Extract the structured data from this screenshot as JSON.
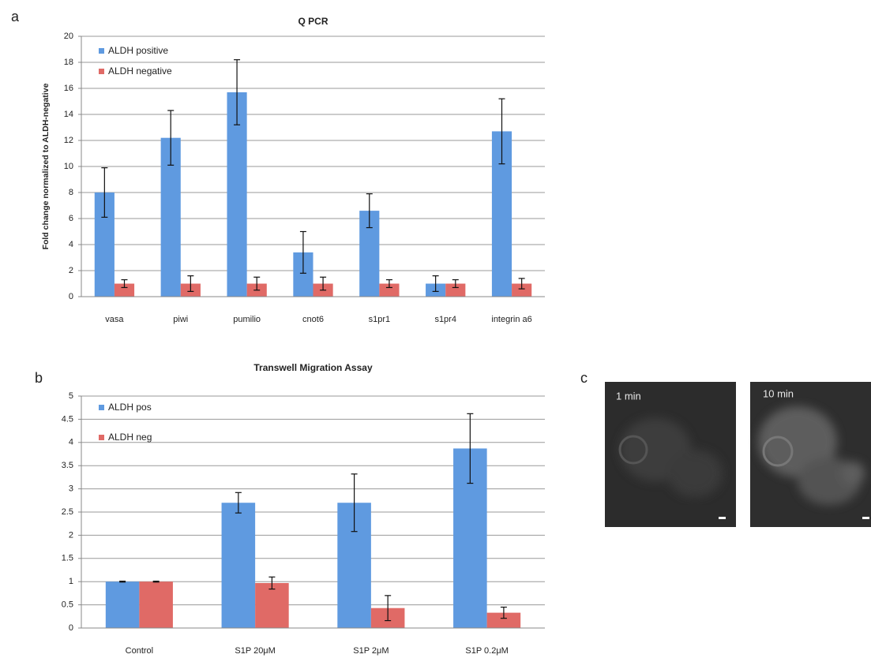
{
  "panel_labels": [
    "a",
    "b",
    "c"
  ],
  "images": [
    {
      "label": "1 min"
    },
    {
      "label": "10 min"
    }
  ],
  "chart_data": [
    {
      "type": "bar",
      "title": "Q PCR",
      "y_label": "Fold change normalized to ALDH-negative",
      "categories": [
        "vasa",
        "piwi",
        "pumilio",
        "cnot6",
        "s1pr1",
        "s1pr4",
        "integrin a6"
      ],
      "series": [
        {
          "name": "ALDH positive",
          "color": "#5f9ae0",
          "values": [
            8.0,
            12.2,
            15.7,
            3.4,
            6.6,
            1.0,
            12.7
          ],
          "errors": [
            1.9,
            2.1,
            2.5,
            1.6,
            1.3,
            0.6,
            2.5
          ]
        },
        {
          "name": "ALDH negative",
          "color": "#e06a66",
          "values": [
            1.0,
            1.0,
            1.0,
            1.0,
            1.0,
            1.0,
            1.0
          ],
          "errors": [
            0.3,
            0.6,
            0.5,
            0.5,
            0.3,
            0.3,
            0.4
          ]
        }
      ],
      "ylim": [
        0,
        20
      ],
      "yticks": [
        0,
        2,
        4,
        6,
        8,
        10,
        12,
        14,
        16,
        18,
        20
      ],
      "grid": true,
      "legend": "upper left"
    },
    {
      "type": "bar",
      "title": "Transwell Migration Assay",
      "categories": [
        "Control",
        "S1P 20μM",
        "S1P 2μM",
        "S1P 0.2μM"
      ],
      "series": [
        {
          "name": "ALDH pos",
          "color": "#5f9ae0",
          "values": [
            1.0,
            2.7,
            2.7,
            3.87
          ],
          "errors": [
            0.01,
            0.22,
            0.62,
            0.75
          ]
        },
        {
          "name": "ALDH neg",
          "color": "#e06a66",
          "values": [
            1.0,
            0.97,
            0.43,
            0.33
          ],
          "errors": [
            0.01,
            0.13,
            0.27,
            0.12
          ]
        }
      ],
      "ylim": [
        0,
        5
      ],
      "yticks": [
        0,
        0.5,
        1,
        1.5,
        2,
        2.5,
        3,
        3.5,
        4,
        4.5,
        5
      ],
      "grid": true,
      "legend": "upper left"
    }
  ]
}
